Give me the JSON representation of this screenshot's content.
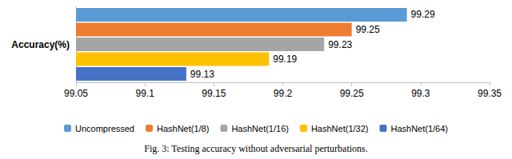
{
  "chart_data": {
    "type": "bar",
    "orientation": "horizontal",
    "title": "Fig. 3: Testing accuracy without adversarial perturbations.",
    "categories": [
      "Accuracy(%)"
    ],
    "series": [
      {
        "name": "Uncompressed",
        "color": "#5B9BD5",
        "values": [
          99.29
        ]
      },
      {
        "name": "HashNet(1/8)",
        "color": "#ED7D31",
        "values": [
          99.25
        ]
      },
      {
        "name": "HashNet(1/16)",
        "color": "#A5A5A5",
        "values": [
          99.23
        ]
      },
      {
        "name": "HashNet(1/32)",
        "color": "#FFC000",
        "values": [
          99.19
        ]
      },
      {
        "name": "HashNet(1/64)",
        "color": "#4472C4",
        "values": [
          99.13
        ]
      }
    ],
    "xlim": [
      99.05,
      99.35
    ],
    "xticks": [
      99.05,
      99.1,
      99.15,
      99.2,
      99.25,
      99.3,
      99.35
    ],
    "grid": false,
    "legend": "bottom",
    "data_labels": true
  }
}
